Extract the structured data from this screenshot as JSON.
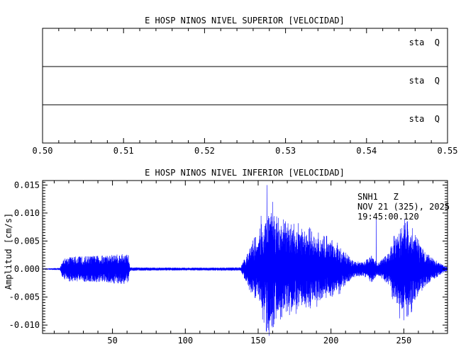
{
  "chart_data": [
    {
      "type": "line",
      "title": "E HOSP NINOS NIVEL SUPERIOR [VELOCIDAD]",
      "xlim": [
        0.5,
        0.55
      ],
      "x_ticks": [
        "0.50",
        "0.51",
        "0.52",
        "0.53",
        "0.54",
        "0.55"
      ],
      "x_tick_values": [
        0.5,
        0.51,
        0.52,
        0.53,
        0.54,
        0.55
      ],
      "traces": [
        {
          "label": "sta  Q"
        },
        {
          "label": "sta  Q"
        },
        {
          "label": "sta  Q"
        }
      ]
    },
    {
      "type": "line",
      "title": "E HOSP NINOS NIVEL INFERIOR [VELOCIDAD]",
      "ylabel": "Amplitud [cm/s]",
      "xlim": [
        2,
        280
      ],
      "ylim": [
        -0.0115,
        0.0158
      ],
      "x_ticks": [
        "50",
        "100",
        "150",
        "200",
        "250"
      ],
      "x_tick_values": [
        50,
        100,
        150,
        200,
        250
      ],
      "y_ticks": [
        "0.015",
        "0.010",
        "0.005",
        "0.000",
        "-0.005",
        "-0.010"
      ],
      "y_tick_values": [
        0.015,
        0.01,
        0.005,
        0.0,
        -0.005,
        -0.01
      ],
      "color": "#0000ff",
      "annotation": [
        "SNH1   Z",
        "NOV 21 (325), 2025",
        "19:45:00.120"
      ],
      "envelope": [
        {
          "x": 2,
          "amp": 0.0001
        },
        {
          "x": 14,
          "amp": 0.0002
        },
        {
          "x": 16,
          "amp": 0.0018
        },
        {
          "x": 20,
          "amp": 0.0022
        },
        {
          "x": 40,
          "amp": 0.0024
        },
        {
          "x": 58,
          "amp": 0.0027
        },
        {
          "x": 61,
          "amp": 0.0026
        },
        {
          "x": 62,
          "amp": 0.0003
        },
        {
          "x": 100,
          "amp": 0.00025
        },
        {
          "x": 138,
          "amp": 0.0003
        },
        {
          "x": 140,
          "amp": 0.0015
        },
        {
          "x": 145,
          "amp": 0.004
        },
        {
          "x": 150,
          "amp": 0.005
        },
        {
          "x": 155,
          "amp": 0.0085
        },
        {
          "x": 157,
          "amp": 0.01
        },
        {
          "x": 163,
          "amp": 0.0075
        },
        {
          "x": 170,
          "amp": 0.007
        },
        {
          "x": 180,
          "amp": 0.0065
        },
        {
          "x": 190,
          "amp": 0.0055
        },
        {
          "x": 200,
          "amp": 0.0045
        },
        {
          "x": 210,
          "amp": 0.003
        },
        {
          "x": 215,
          "amp": 0.0015
        },
        {
          "x": 222,
          "amp": 0.0012
        },
        {
          "x": 228,
          "amp": 0.0025
        },
        {
          "x": 232,
          "amp": 0.001
        },
        {
          "x": 240,
          "amp": 0.003
        },
        {
          "x": 245,
          "amp": 0.006
        },
        {
          "x": 250,
          "amp": 0.0075
        },
        {
          "x": 256,
          "amp": 0.006
        },
        {
          "x": 265,
          "amp": 0.003
        },
        {
          "x": 275,
          "amp": 0.001
        },
        {
          "x": 280,
          "amp": 0.0003
        }
      ],
      "peaks": [
        {
          "x": 152,
          "y": 0.0095
        },
        {
          "x": 156,
          "y": 0.015
        },
        {
          "x": 156.5,
          "y": -0.0105
        },
        {
          "x": 160,
          "y": 0.012
        },
        {
          "x": 153,
          "y": -0.009
        },
        {
          "x": 231,
          "y": 0.01
        },
        {
          "x": 250,
          "y": 0.0078
        },
        {
          "x": 247,
          "y": -0.0088
        }
      ]
    }
  ]
}
